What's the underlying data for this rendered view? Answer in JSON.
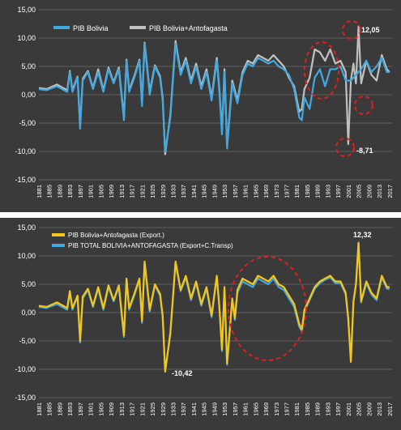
{
  "colors": {
    "panel_bg": "#3a3a3a",
    "grid": "#6a6a6a",
    "text": "#ffffff",
    "series_blue": "#41a9e1",
    "series_gray": "#c0c0c0",
    "series_yellow": "#f5c518",
    "annotation": "#e02020"
  },
  "chart_data": [
    {
      "type": "line",
      "x_ticks": [
        "1881",
        "1885",
        "1889",
        "1893",
        "1897",
        "1901",
        "1905",
        "1909",
        "1913",
        "1917",
        "1921",
        "1925",
        "1929",
        "1933",
        "1937",
        "1941",
        "1945",
        "1949",
        "1953",
        "1957",
        "1961",
        "1965",
        "1969",
        "1973",
        "1977",
        "1981",
        "1985",
        "1989",
        "1993",
        "1997",
        "2001",
        "2005",
        "2009",
        "2013",
        "2017"
      ],
      "xlim": [
        1881,
        2018
      ],
      "ylim": [
        -15,
        15
      ],
      "y_ticks": [
        "15,00",
        "10,00",
        "5,00",
        "0,00",
        "-5,00",
        "-10,00",
        "-15,00"
      ],
      "grid": true,
      "legend_position": "top-left",
      "series": [
        {
          "name": "PIB Bolivia",
          "color": "#41a9e1",
          "x": [
            1881,
            1884,
            1888,
            1892,
            1893,
            1894,
            1896,
            1897,
            1898,
            1900,
            1902,
            1904,
            1906,
            1908,
            1910,
            1912,
            1914,
            1915,
            1916,
            1918,
            1920,
            1921,
            1922,
            1924,
            1926,
            1928,
            1929,
            1930,
            1932,
            1934,
            1936,
            1938,
            1940,
            1942,
            1944,
            1946,
            1948,
            1950,
            1951,
            1952,
            1953,
            1954,
            1956,
            1958,
            1960,
            1962,
            1964,
            1966,
            1968,
            1970,
            1972,
            1974,
            1976,
            1978,
            1980,
            1982,
            1983,
            1984,
            1986,
            1988,
            1990,
            1992,
            1994,
            1996,
            1998,
            2000,
            2002,
            2004,
            2006,
            2008,
            2010,
            2012,
            2014,
            2016,
            2017
          ],
          "values": [
            1.0,
            0.8,
            1.5,
            0.5,
            4.0,
            0.5,
            3.0,
            -6.0,
            2.5,
            4.0,
            1.0,
            4.0,
            0.5,
            4.5,
            2.0,
            4.5,
            -4.5,
            6.0,
            0.5,
            3.0,
            6.0,
            -2.0,
            9.0,
            0.0,
            5.0,
            3.0,
            -1.0,
            -10.0,
            -4.0,
            9.0,
            3.5,
            6.0,
            2.0,
            5.0,
            1.0,
            4.0,
            -1.0,
            6.0,
            0.5,
            -7.0,
            4.0,
            -9.5,
            2.0,
            -1.5,
            3.5,
            5.5,
            5.0,
            6.5,
            6.0,
            5.5,
            6.0,
            5.0,
            4.5,
            3.5,
            1.0,
            -4.0,
            -4.5,
            -0.5,
            -2.5,
            3.0,
            4.5,
            1.5,
            4.5,
            4.5,
            5.0,
            2.5,
            2.5,
            3.5,
            4.5,
            6.0,
            4.0,
            5.0,
            6.5,
            4.0,
            4.0
          ]
        },
        {
          "name": "PIB Bolivia+Antofagasta",
          "color": "#c0c0c0",
          "x": [
            1881,
            1884,
            1888,
            1892,
            1893,
            1894,
            1896,
            1897,
            1898,
            1900,
            1902,
            1904,
            1906,
            1908,
            1910,
            1912,
            1914,
            1915,
            1916,
            1918,
            1920,
            1921,
            1922,
            1924,
            1926,
            1928,
            1929,
            1930,
            1932,
            1934,
            1936,
            1938,
            1940,
            1942,
            1944,
            1946,
            1948,
            1950,
            1951,
            1952,
            1953,
            1954,
            1956,
            1958,
            1960,
            1962,
            1964,
            1966,
            1968,
            1970,
            1972,
            1974,
            1976,
            1978,
            1980,
            1982,
            1983,
            1984,
            1986,
            1988,
            1990,
            1992,
            1994,
            1996,
            1998,
            2000,
            2001,
            2002,
            2003,
            2004,
            2005,
            2006,
            2008,
            2010,
            2012,
            2014,
            2016,
            2017
          ],
          "values": [
            1.2,
            1.0,
            1.8,
            0.8,
            4.2,
            0.8,
            3.2,
            -5.5,
            2.8,
            4.2,
            1.2,
            4.5,
            0.8,
            4.8,
            2.2,
            4.8,
            -4.0,
            6.2,
            0.8,
            3.3,
            6.2,
            -1.5,
            9.2,
            0.5,
            5.2,
            3.3,
            -0.5,
            -10.5,
            -3.5,
            9.5,
            4.0,
            6.5,
            2.5,
            5.5,
            1.5,
            4.5,
            -0.5,
            6.5,
            1.0,
            -6.5,
            4.5,
            -9.0,
            2.5,
            -1.0,
            4.0,
            6.0,
            5.5,
            7.0,
            6.5,
            6.0,
            7.0,
            6.0,
            5.0,
            3.0,
            1.5,
            -3.0,
            -2.5,
            1.0,
            3.0,
            8.0,
            7.5,
            6.0,
            8.0,
            5.5,
            6.0,
            4.0,
            -8.71,
            2.5,
            5.5,
            2.0,
            12.05,
            2.0,
            6.0,
            3.5,
            2.5,
            7.0,
            4.5,
            4.0
          ]
        }
      ],
      "annotations": [
        {
          "text": "12,05",
          "x": 2005,
          "y": 12.05
        },
        {
          "text": "-8,71",
          "x": 2001,
          "y": -8.71
        }
      ]
    },
    {
      "type": "line",
      "x_ticks": [
        "1881",
        "1885",
        "1889",
        "1893",
        "1897",
        "1901",
        "1905",
        "1909",
        "1913",
        "1917",
        "1921",
        "1925",
        "1929",
        "1933",
        "1937",
        "1941",
        "1945",
        "1949",
        "1953",
        "1957",
        "1961",
        "1965",
        "1969",
        "1973",
        "1977",
        "1981",
        "1985",
        "1989",
        "1993",
        "1997",
        "2001",
        "2005",
        "2009",
        "2013",
        "2017"
      ],
      "xlim": [
        1881,
        2018
      ],
      "ylim": [
        -15,
        15
      ],
      "y_ticks": [
        "15,00",
        "10,00",
        "5,00",
        "0,00",
        "-5,00",
        "-10,00",
        "-15,00"
      ],
      "grid": true,
      "legend_position": "top-left",
      "series": [
        {
          "name": "PIB Bolivia+Antofagasta (Export.)",
          "color": "#f5c518",
          "x": [
            1881,
            1884,
            1888,
            1892,
            1893,
            1894,
            1896,
            1897,
            1898,
            1900,
            1902,
            1904,
            1906,
            1908,
            1910,
            1912,
            1914,
            1915,
            1916,
            1918,
            1920,
            1921,
            1922,
            1924,
            1926,
            1928,
            1929,
            1930,
            1932,
            1934,
            1936,
            1938,
            1940,
            1942,
            1944,
            1946,
            1948,
            1950,
            1951,
            1952,
            1953,
            1954,
            1956,
            1957,
            1958,
            1960,
            1962,
            1964,
            1966,
            1968,
            1970,
            1972,
            1974,
            1976,
            1978,
            1980,
            1982,
            1983,
            1984,
            1986,
            1988,
            1990,
            1992,
            1994,
            1996,
            1998,
            2000,
            2001,
            2002,
            2003,
            2004,
            2005,
            2006,
            2008,
            2010,
            2012,
            2014,
            2016,
            2017
          ],
          "values": [
            1.2,
            1.0,
            1.8,
            0.8,
            3.8,
            0.8,
            3.0,
            -5.0,
            2.8,
            4.2,
            1.2,
            4.5,
            0.8,
            4.8,
            2.2,
            4.8,
            -4.0,
            6.0,
            0.8,
            3.3,
            6.0,
            -1.5,
            9.0,
            0.5,
            5.0,
            3.3,
            -0.5,
            -10.42,
            -3.5,
            9.0,
            4.0,
            6.5,
            2.5,
            5.5,
            1.5,
            4.5,
            -0.5,
            6.5,
            1.0,
            -6.5,
            4.5,
            -9.0,
            2.5,
            -1.0,
            4.0,
            6.0,
            5.5,
            5.0,
            6.5,
            6.0,
            5.5,
            6.5,
            5.0,
            4.5,
            3.0,
            1.5,
            -2.0,
            -3.0,
            0.5,
            2.5,
            4.5,
            5.5,
            6.0,
            6.5,
            5.5,
            5.5,
            3.5,
            -1.0,
            -8.7,
            2.0,
            5.0,
            12.32,
            2.0,
            5.5,
            3.5,
            2.5,
            6.5,
            4.5,
            4.5
          ]
        },
        {
          "name": "PIB TOTAL BOLIVIA+ANTOFAGASTA (Export+C.Transp)",
          "color": "#41a9e1",
          "x": [
            1881,
            1884,
            1888,
            1892,
            1893,
            1894,
            1896,
            1897,
            1898,
            1900,
            1902,
            1904,
            1906,
            1908,
            1910,
            1912,
            1914,
            1915,
            1916,
            1918,
            1920,
            1921,
            1922,
            1924,
            1926,
            1928,
            1929,
            1930,
            1932,
            1934,
            1936,
            1938,
            1940,
            1942,
            1944,
            1946,
            1948,
            1950,
            1951,
            1952,
            1953,
            1954,
            1956,
            1957,
            1958,
            1960,
            1962,
            1964,
            1966,
            1968,
            1970,
            1972,
            1974,
            1976,
            1978,
            1980,
            1982,
            1983,
            1984,
            1986,
            1988,
            1990,
            1992,
            1994,
            1996,
            1998,
            2000,
            2001,
            2002,
            2003,
            2004,
            2005,
            2006,
            2008,
            2010,
            2012,
            2014,
            2016,
            2017
          ],
          "values": [
            1.0,
            0.8,
            1.5,
            0.5,
            3.5,
            0.5,
            2.8,
            -5.3,
            2.5,
            4.0,
            1.0,
            4.2,
            0.5,
            4.5,
            2.0,
            4.5,
            -4.3,
            5.8,
            0.5,
            3.0,
            5.8,
            -1.8,
            8.8,
            0.2,
            4.8,
            3.0,
            -0.8,
            -10.42,
            -3.8,
            8.8,
            3.8,
            6.2,
            2.2,
            5.2,
            1.2,
            4.2,
            -0.8,
            6.2,
            0.8,
            -6.8,
            4.2,
            -9.2,
            2.2,
            -1.3,
            3.5,
            5.5,
            5.0,
            4.5,
            6.0,
            5.5,
            5.0,
            6.0,
            4.5,
            4.0,
            2.5,
            1.0,
            -2.5,
            -3.3,
            0.2,
            2.2,
            4.2,
            5.2,
            5.8,
            6.2,
            5.2,
            5.2,
            3.2,
            -1.3,
            -8.4,
            1.8,
            4.8,
            12.32,
            1.8,
            5.2,
            3.2,
            2.2,
            6.2,
            4.2,
            4.2
          ]
        }
      ],
      "annotations": [
        {
          "text": "12,32",
          "x": 2005,
          "y": 12.32
        },
        {
          "text": "-10,42",
          "x": 1930,
          "y": -10.42
        }
      ]
    }
  ]
}
